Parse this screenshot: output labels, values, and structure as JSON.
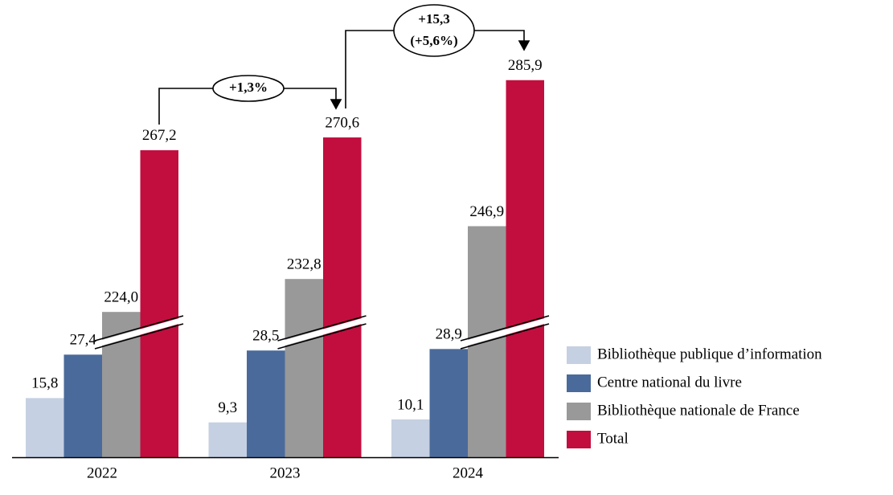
{
  "chart_data": {
    "type": "bar",
    "categories": [
      "2022",
      "2023",
      "2024"
    ],
    "series": [
      {
        "name": "Bibliothèque publique d’information",
        "color": "#c5d0e2",
        "values": [
          15.8,
          9.3,
          10.1
        ],
        "value_labels": [
          "15,8",
          "9,3",
          "10,1"
        ]
      },
      {
        "name": "Centre national du livre",
        "color": "#4a6a9b",
        "values": [
          27.4,
          28.5,
          28.9
        ],
        "value_labels": [
          "27,4",
          "28,5",
          "28,9"
        ]
      },
      {
        "name": "Bibliothèque nationale de France",
        "color": "#999999",
        "values": [
          224.0,
          232.8,
          246.9
        ],
        "value_labels": [
          "224,0",
          "232,8",
          "246,9"
        ]
      },
      {
        "name": "Total",
        "color": "#c20e3f",
        "values": [
          267.2,
          270.6,
          285.9
        ],
        "value_labels": [
          "267,2",
          "270,6",
          "285,9"
        ]
      }
    ],
    "annotations": [
      [
        "+1,3%"
      ],
      [
        "+15,3",
        "(+5,6%)"
      ]
    ],
    "legend": "right"
  }
}
